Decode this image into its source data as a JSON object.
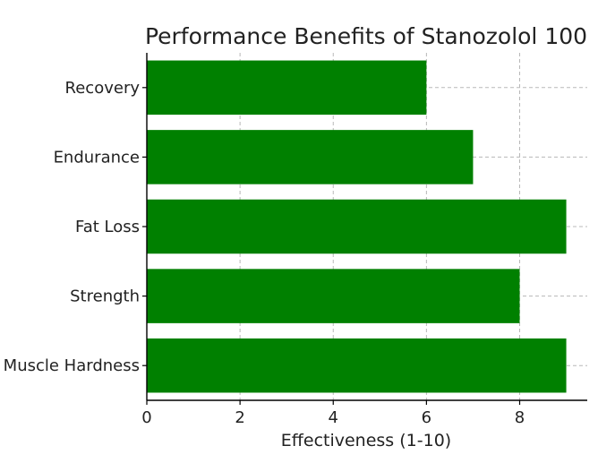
{
  "chart_data": {
    "type": "bar",
    "orientation": "horizontal",
    "title": "Performance Benefits of Stanozolol 100",
    "xlabel": "Effectiveness (1-10)",
    "ylabel": "",
    "categories": [
      "Muscle Hardness",
      "Strength",
      "Fat Loss",
      "Endurance",
      "Recovery"
    ],
    "values": [
      9,
      8,
      9,
      7,
      6
    ],
    "xlim": [
      0,
      9.45
    ],
    "xticks": [
      0,
      2,
      4,
      6,
      8
    ],
    "grid": true,
    "legend": "none",
    "colors": {
      "bar": "#008000",
      "grid": "#b8b8b8",
      "axis": "#000000"
    }
  }
}
